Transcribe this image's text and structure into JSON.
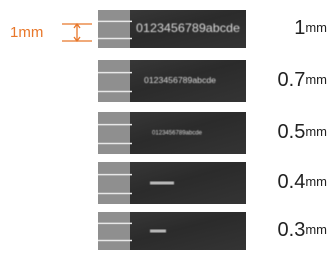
{
  "scale_label": "1mm",
  "rows": [
    {
      "size": "1",
      "unit": "mm",
      "sample": "0123456789abcde"
    },
    {
      "size": "0.7",
      "unit": "mm",
      "sample": "0123456789abcde"
    },
    {
      "size": "0.5",
      "unit": "mm",
      "sample": "0123456789abcde"
    },
    {
      "size": "0.4",
      "unit": "mm"
    },
    {
      "size": "0.3",
      "unit": "mm"
    }
  ]
}
